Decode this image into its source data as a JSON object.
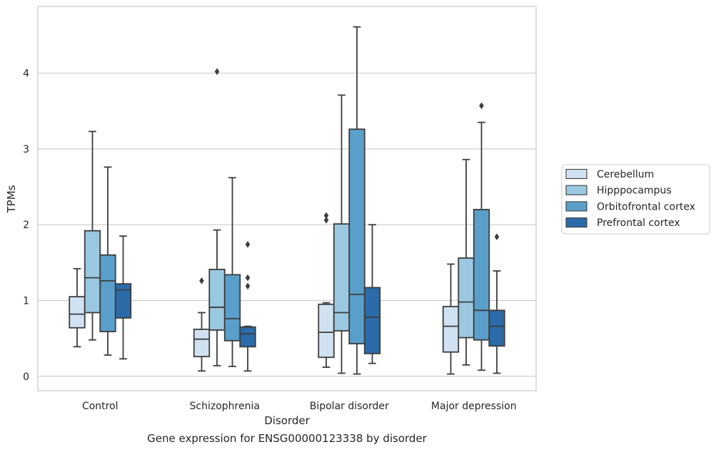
{
  "chart_data": {
    "type": "box",
    "title": "",
    "caption": "Gene expression for ENSG00000123338 by disorder",
    "xlabel": "Disorder",
    "ylabel": "TPMs",
    "categories": [
      "Control",
      "Schizophrenia",
      "Bipolar disorder",
      "Major depression"
    ],
    "ylim": [
      -0.19,
      4.88
    ],
    "yticks": [
      0,
      1,
      2,
      3,
      4
    ],
    "grid": "horizontal",
    "legend_position": "right",
    "series": [
      {
        "name": "Cerebellum",
        "color": "#d0e1f2",
        "boxes": [
          {
            "whisker_low": 0.39,
            "q1": 0.64,
            "median": 0.82,
            "q3": 1.05,
            "whisker_high": 1.42,
            "outliers": []
          },
          {
            "whisker_low": 0.07,
            "q1": 0.26,
            "median": 0.49,
            "q3": 0.62,
            "whisker_high": 0.84,
            "outliers": [
              1.26
            ]
          },
          {
            "whisker_low": 0.12,
            "q1": 0.25,
            "median": 0.58,
            "q3": 0.95,
            "whisker_high": 0.97,
            "outliers": [
              2.06,
              2.12
            ]
          },
          {
            "whisker_low": 0.03,
            "q1": 0.32,
            "median": 0.66,
            "q3": 0.92,
            "whisker_high": 1.48,
            "outliers": []
          }
        ]
      },
      {
        "name": "Hipppocampus",
        "color": "#9ac8e0",
        "boxes": [
          {
            "whisker_low": 0.48,
            "q1": 0.84,
            "median": 1.3,
            "q3": 1.92,
            "whisker_high": 3.23,
            "outliers": []
          },
          {
            "whisker_low": 0.14,
            "q1": 0.61,
            "median": 0.91,
            "q3": 1.41,
            "whisker_high": 1.93,
            "outliers": [
              4.02
            ]
          },
          {
            "whisker_low": 0.04,
            "q1": 0.6,
            "median": 0.84,
            "q3": 2.01,
            "whisker_high": 3.71,
            "outliers": []
          },
          {
            "whisker_low": 0.15,
            "q1": 0.51,
            "median": 0.98,
            "q3": 1.56,
            "whisker_high": 2.86,
            "outliers": []
          }
        ]
      },
      {
        "name": "Orbitofrontal cortex",
        "color": "#5a9fca",
        "boxes": [
          {
            "whisker_low": 0.28,
            "q1": 0.59,
            "median": 1.26,
            "q3": 1.6,
            "whisker_high": 2.76,
            "outliers": []
          },
          {
            "whisker_low": 0.13,
            "q1": 0.47,
            "median": 0.76,
            "q3": 1.34,
            "whisker_high": 2.62,
            "outliers": []
          },
          {
            "whisker_low": 0.03,
            "q1": 0.43,
            "median": 1.08,
            "q3": 3.26,
            "whisker_high": 4.61,
            "outliers": []
          },
          {
            "whisker_low": 0.08,
            "q1": 0.48,
            "median": 0.87,
            "q3": 2.2,
            "whisker_high": 3.35,
            "outliers": [
              3.57
            ]
          }
        ]
      },
      {
        "name": "Prefrontal cortex",
        "color": "#2b6ba9",
        "boxes": [
          {
            "whisker_low": 0.23,
            "q1": 0.77,
            "median": 1.14,
            "q3": 1.22,
            "whisker_high": 1.85,
            "outliers": []
          },
          {
            "whisker_low": 0.07,
            "q1": 0.39,
            "median": 0.56,
            "q3": 0.65,
            "whisker_high": 0.66,
            "outliers": [
              1.19,
              1.3,
              1.74
            ]
          },
          {
            "whisker_low": 0.17,
            "q1": 0.3,
            "median": 0.78,
            "q3": 1.17,
            "whisker_high": 2.0,
            "outliers": []
          },
          {
            "whisker_low": 0.04,
            "q1": 0.4,
            "median": 0.66,
            "q3": 0.87,
            "whisker_high": 1.39,
            "outliers": [
              1.84
            ]
          }
        ]
      }
    ]
  }
}
